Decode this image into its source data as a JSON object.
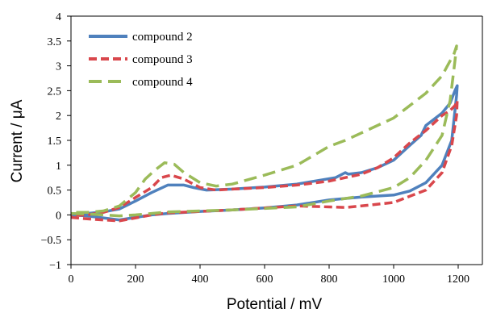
{
  "chart_data": {
    "type": "line",
    "xlabel": "Potential / mV",
    "ylabel": "Current / μA",
    "xlim": [
      0,
      1200
    ],
    "ylim": [
      -1,
      4
    ],
    "xticks": [
      0,
      200,
      400,
      600,
      800,
      1000,
      1200
    ],
    "yticks": [
      -1,
      -0.5,
      0,
      0.5,
      1,
      1.5,
      2,
      2.5,
      3,
      3.5,
      4
    ],
    "ytick_labels": [
      "−1",
      "−0.5",
      "0",
      "0.5",
      "1",
      "1.5",
      "2",
      "2.5",
      "3",
      "3.5",
      "4"
    ],
    "grid": false,
    "legend_position": "top-left",
    "series": [
      {
        "name": "compound 2",
        "color": "#4f81bd",
        "dash": "solid",
        "points": [
          [
            0,
            0.0
          ],
          [
            50,
            -0.02
          ],
          [
            100,
            -0.06
          ],
          [
            150,
            -0.1
          ],
          [
            200,
            -0.05
          ],
          [
            250,
            0.0
          ],
          [
            300,
            0.03
          ],
          [
            400,
            0.07
          ],
          [
            500,
            0.1
          ],
          [
            600,
            0.14
          ],
          [
            700,
            0.2
          ],
          [
            800,
            0.3
          ],
          [
            900,
            0.36
          ],
          [
            1000,
            0.4
          ],
          [
            1050,
            0.48
          ],
          [
            1100,
            0.65
          ],
          [
            1150,
            1.0
          ],
          [
            1180,
            1.5
          ],
          [
            1195,
            2.4
          ],
          [
            1197,
            2.6
          ],
          [
            1190,
            2.5
          ],
          [
            1175,
            2.25
          ],
          [
            1150,
            2.05
          ],
          [
            1120,
            1.9
          ],
          [
            1100,
            1.8
          ],
          [
            1085,
            1.6
          ],
          [
            1050,
            1.4
          ],
          [
            1000,
            1.1
          ],
          [
            950,
            0.95
          ],
          [
            900,
            0.85
          ],
          [
            860,
            0.82
          ],
          [
            850,
            0.85
          ],
          [
            820,
            0.75
          ],
          [
            700,
            0.62
          ],
          [
            600,
            0.56
          ],
          [
            500,
            0.52
          ],
          [
            420,
            0.5
          ],
          [
            380,
            0.55
          ],
          [
            350,
            0.6
          ],
          [
            300,
            0.6
          ],
          [
            250,
            0.45
          ],
          [
            200,
            0.28
          ],
          [
            150,
            0.12
          ],
          [
            100,
            0.06
          ],
          [
            50,
            0.03
          ],
          [
            0,
            0.02
          ]
        ]
      },
      {
        "name": "compound 3",
        "color": "#d9474c",
        "dash": "dashed",
        "points": [
          [
            0,
            -0.05
          ],
          [
            50,
            -0.08
          ],
          [
            100,
            -0.1
          ],
          [
            150,
            -0.12
          ],
          [
            200,
            -0.06
          ],
          [
            250,
            0.0
          ],
          [
            300,
            0.04
          ],
          [
            400,
            0.07
          ],
          [
            500,
            0.1
          ],
          [
            600,
            0.14
          ],
          [
            700,
            0.18
          ],
          [
            800,
            0.16
          ],
          [
            850,
            0.15
          ],
          [
            900,
            0.18
          ],
          [
            1000,
            0.25
          ],
          [
            1100,
            0.5
          ],
          [
            1150,
            0.85
          ],
          [
            1180,
            1.4
          ],
          [
            1195,
            2.0
          ],
          [
            1197,
            2.3
          ],
          [
            1190,
            2.2
          ],
          [
            1175,
            2.1
          ],
          [
            1150,
            2.0
          ],
          [
            1100,
            1.7
          ],
          [
            1050,
            1.45
          ],
          [
            1000,
            1.15
          ],
          [
            950,
            0.95
          ],
          [
            900,
            0.82
          ],
          [
            850,
            0.75
          ],
          [
            800,
            0.68
          ],
          [
            700,
            0.6
          ],
          [
            600,
            0.55
          ],
          [
            500,
            0.52
          ],
          [
            450,
            0.5
          ],
          [
            400,
            0.55
          ],
          [
            350,
            0.72
          ],
          [
            310,
            0.8
          ],
          [
            280,
            0.75
          ],
          [
            250,
            0.55
          ],
          [
            200,
            0.35
          ],
          [
            150,
            0.15
          ],
          [
            100,
            0.05
          ],
          [
            50,
            0.0
          ],
          [
            0,
            -0.02
          ]
        ]
      },
      {
        "name": "compound 4",
        "color": "#9bbb59",
        "dash": "long-dashed",
        "points": [
          [
            0,
            0.03
          ],
          [
            50,
            0.02
          ],
          [
            100,
            0.0
          ],
          [
            150,
            -0.02
          ],
          [
            200,
            0.0
          ],
          [
            250,
            0.03
          ],
          [
            300,
            0.06
          ],
          [
            400,
            0.08
          ],
          [
            500,
            0.1
          ],
          [
            600,
            0.13
          ],
          [
            700,
            0.16
          ],
          [
            800,
            0.28
          ],
          [
            900,
            0.38
          ],
          [
            1000,
            0.55
          ],
          [
            1050,
            0.75
          ],
          [
            1100,
            1.1
          ],
          [
            1150,
            1.6
          ],
          [
            1175,
            2.3
          ],
          [
            1190,
            3.1
          ],
          [
            1195,
            3.4
          ],
          [
            1185,
            3.2
          ],
          [
            1175,
            3.1
          ],
          [
            1150,
            2.8
          ],
          [
            1100,
            2.45
          ],
          [
            1050,
            2.2
          ],
          [
            1000,
            1.95
          ],
          [
            950,
            1.8
          ],
          [
            900,
            1.65
          ],
          [
            850,
            1.5
          ],
          [
            800,
            1.38
          ],
          [
            700,
            1.0
          ],
          [
            600,
            0.8
          ],
          [
            500,
            0.62
          ],
          [
            450,
            0.58
          ],
          [
            400,
            0.65
          ],
          [
            350,
            0.85
          ],
          [
            320,
            1.02
          ],
          [
            290,
            1.05
          ],
          [
            260,
            0.9
          ],
          [
            230,
            0.72
          ],
          [
            200,
            0.45
          ],
          [
            150,
            0.18
          ],
          [
            100,
            0.08
          ],
          [
            50,
            0.05
          ],
          [
            0,
            0.05
          ]
        ]
      }
    ]
  }
}
